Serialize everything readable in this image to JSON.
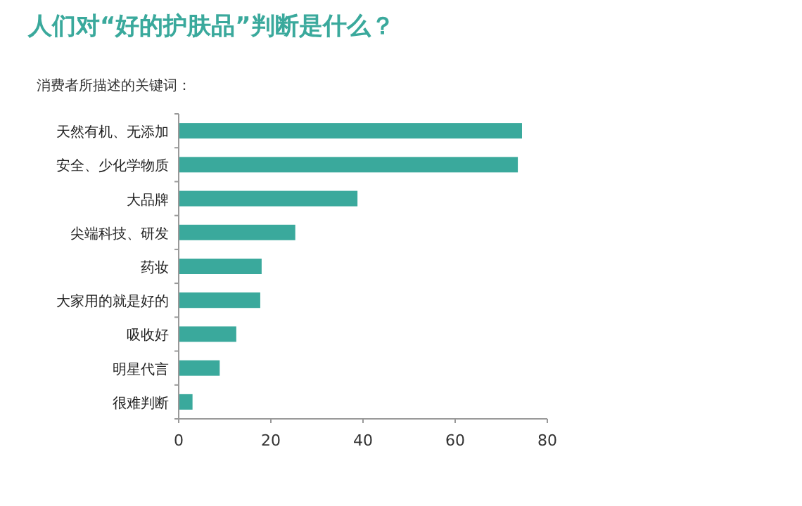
{
  "chart_data": {
    "type": "bar",
    "orientation": "horizontal",
    "title": "人们对“好的护肤品”判断是什么？",
    "subtitle": "消费者所描述的关键词：",
    "categories": [
      "天然有机、无添加",
      "安全、少化学物质",
      "大品牌",
      "尖端科技、研发",
      "药妆",
      "大家用的就是好的",
      "吸收好",
      "明星代言",
      "很难判断"
    ],
    "values": [
      74.5,
      73.6,
      38.8,
      25.3,
      18.0,
      17.7,
      12.5,
      8.9,
      3.0
    ],
    "color": "#3aa99c",
    "xlim": [
      0,
      80
    ],
    "xticks": [
      0,
      20,
      40,
      60,
      80
    ],
    "grid": false
  }
}
